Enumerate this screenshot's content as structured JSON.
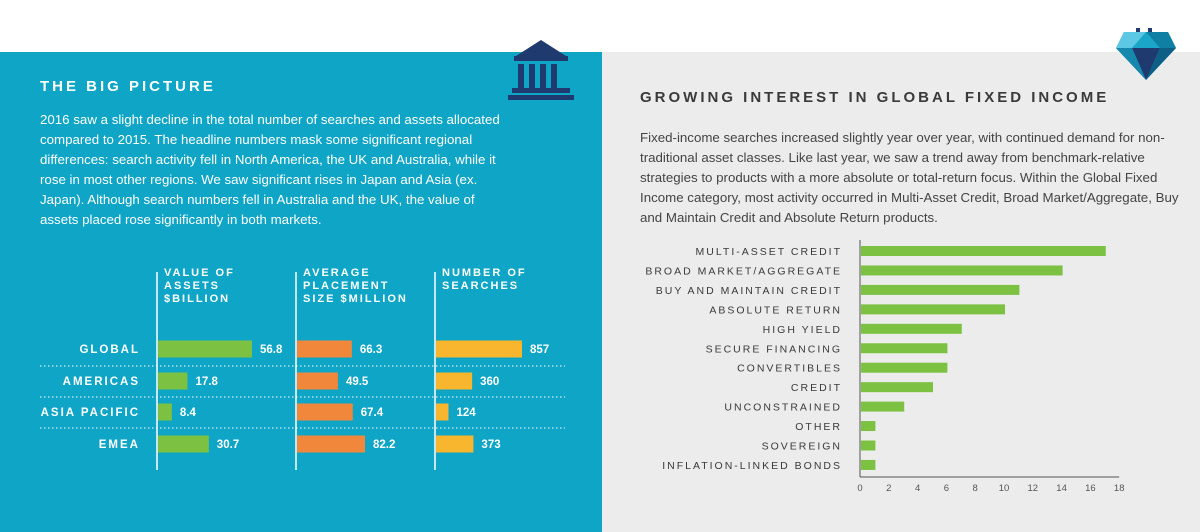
{
  "left": {
    "title": "THE BIG PICTURE",
    "body": "2016 saw a slight decline in the total number of searches and assets allocated compared to 2015. The headline numbers mask some significant regional differences: search activity fell in North America, the UK and Australia, while it rose in most other regions. We saw significant rises in Japan and Asia (ex. Japan). Although search numbers fell in Australia and the UK, the value of assets placed rose significantly in both markets."
  },
  "right": {
    "title": "GROWING INTEREST IN GLOBAL FIXED INCOME",
    "body": "Fixed-income searches increased slightly year over year, with continued demand for non-traditional asset classes. Like last year, we saw a trend away from benchmark-relative strategies to products with a more absolute or total-return focus. Within the Global Fixed Income category, most activity occurred in Multi-Asset Credit, Broad Market/Aggregate, Buy and Maintain Credit and Absolute Return products."
  },
  "icons": {
    "left": "bank-building-with-flag-icon",
    "right": "diamond-icon"
  },
  "colors": {
    "left_bg": "#0ea5c6",
    "right_bg": "#ececec",
    "icon_navy": "#1f3a6e",
    "green": "#7cc142",
    "orange": "#f0873a",
    "yellow": "#f7b62d"
  },
  "chart_data": [
    {
      "type": "bar",
      "orientation": "horizontal",
      "categories": [
        "GLOBAL",
        "AMERICAS",
        "ASIA PACIFIC",
        "EMEA"
      ],
      "series": [
        {
          "name": "VALUE OF ASSETS $BILLION",
          "header_lines": [
            "VALUE OF",
            "ASSETS",
            "$BILLION"
          ],
          "values": [
            56.8,
            17.8,
            8.4,
            30.7
          ],
          "color": "#7cc142"
        },
        {
          "name": "AVERAGE PLACEMENT SIZE $MILLION",
          "header_lines": [
            "AVERAGE",
            "PLACEMENT",
            "SIZE $MILLION"
          ],
          "values": [
            66.3,
            49.5,
            67.4,
            82.2
          ],
          "color": "#f0873a"
        },
        {
          "name": "NUMBER OF SEARCHES",
          "header_lines": [
            "NUMBER OF",
            "SEARCHES"
          ],
          "values": [
            857,
            360,
            124,
            373
          ],
          "color": "#f7b62d"
        }
      ],
      "value_labels": [
        [
          "56.8",
          "17.8",
          "8.4",
          "30.7"
        ],
        [
          "66.3",
          "49.5",
          "67.4",
          "82.2"
        ],
        [
          "857",
          "360",
          "124",
          "373"
        ]
      ]
    },
    {
      "type": "bar",
      "orientation": "horizontal",
      "categories": [
        "MULTI-ASSET CREDIT",
        "BROAD MARKET/AGGREGATE",
        "BUY AND MAINTAIN CREDIT",
        "ABSOLUTE RETURN",
        "HIGH YIELD",
        "SECURE FINANCING",
        "CONVERTIBLES",
        "CREDIT",
        "UNCONSTRAINED",
        "OTHER",
        "SOVEREIGN",
        "INFLATION-LINKED BONDS"
      ],
      "values": [
        17,
        14,
        11,
        10,
        7,
        6,
        6,
        5,
        3,
        1,
        1,
        1
      ],
      "xlim": [
        0,
        18
      ],
      "xticks": [
        0,
        2,
        4,
        6,
        8,
        10,
        12,
        14,
        16,
        18
      ],
      "color": "#7cc142",
      "grid": false
    }
  ]
}
